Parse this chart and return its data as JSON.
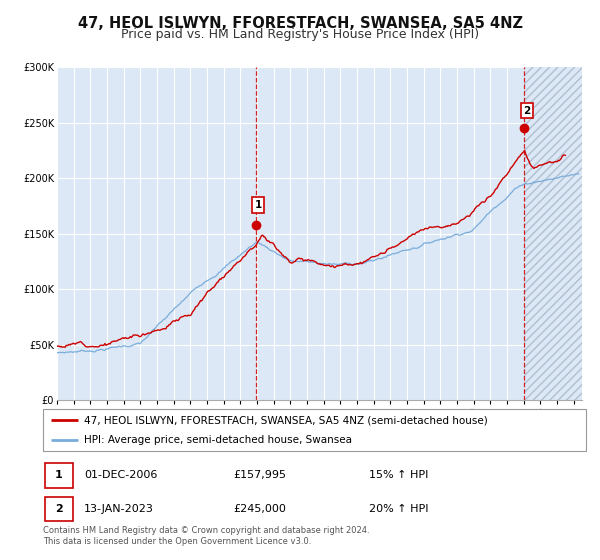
{
  "title": "47, HEOL ISLWYN, FFORESTFACH, SWANSEA, SA5 4NZ",
  "subtitle": "Price paid vs. HM Land Registry's House Price Index (HPI)",
  "ylim": [
    0,
    300000
  ],
  "xlim_start": 1995.0,
  "xlim_end": 2026.5,
  "yticks": [
    0,
    50000,
    100000,
    150000,
    200000,
    250000,
    300000
  ],
  "ytick_labels": [
    "£0",
    "£50K",
    "£100K",
    "£150K",
    "£200K",
    "£250K",
    "£300K"
  ],
  "xticks": [
    1995,
    1996,
    1997,
    1998,
    1999,
    2000,
    2001,
    2002,
    2003,
    2004,
    2005,
    2006,
    2007,
    2008,
    2009,
    2010,
    2011,
    2012,
    2013,
    2014,
    2015,
    2016,
    2017,
    2018,
    2019,
    2020,
    2021,
    2022,
    2023,
    2024,
    2025,
    2026
  ],
  "marker1_x": 2006.917,
  "marker1_y": 157995,
  "marker2_x": 2023.04,
  "marker2_y": 245000,
  "vline1_x": 2006.917,
  "vline2_x": 2023.04,
  "hatch_start": 2023.04,
  "red_line_color": "#cc0000",
  "blue_line_color": "#7aaddc",
  "plot_bg_color": "#dce8f5",
  "legend1_label": "47, HEOL ISLWYN, FFORESTFACH, SWANSEA, SA5 4NZ (semi-detached house)",
  "legend2_label": "HPI: Average price, semi-detached house, Swansea",
  "table_row1": [
    "1",
    "01-DEC-2006",
    "£157,995",
    "15% ↑ HPI"
  ],
  "table_row2": [
    "2",
    "13-JAN-2023",
    "£245,000",
    "20% ↑ HPI"
  ],
  "footer": "Contains HM Land Registry data © Crown copyright and database right 2024.\nThis data is licensed under the Open Government Licence v3.0.",
  "title_fontsize": 10.5,
  "subtitle_fontsize": 9,
  "tick_fontsize": 7,
  "legend_fontsize": 7.5,
  "table_fontsize": 8,
  "footer_fontsize": 6
}
